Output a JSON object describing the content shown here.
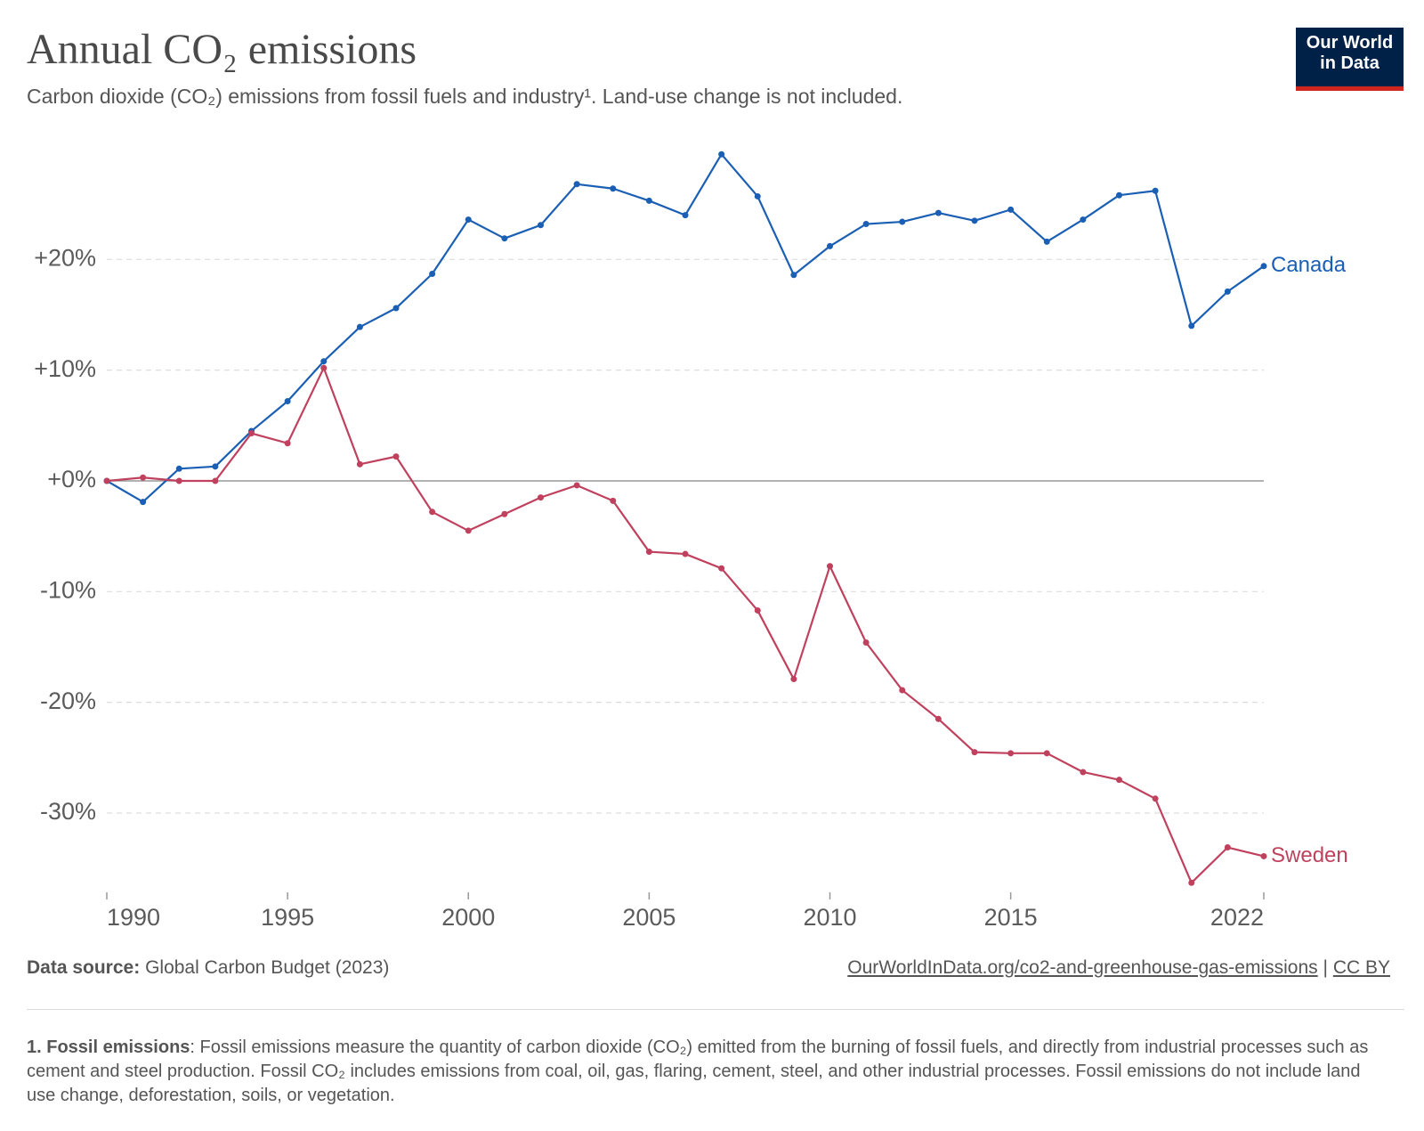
{
  "chart_data": {
    "type": "line",
    "title": "Annual CO₂ emissions",
    "subtitle": "Carbon dioxide (CO₂) emissions from fossil fuels and industry¹. Land-use change is not included.",
    "logo": [
      "Our World",
      "in Data"
    ],
    "x": [
      1990,
      1991,
      1992,
      1993,
      1994,
      1995,
      1996,
      1997,
      1998,
      1999,
      2000,
      2001,
      2002,
      2003,
      2004,
      2005,
      2006,
      2007,
      2008,
      2009,
      2010,
      2011,
      2012,
      2013,
      2014,
      2015,
      2016,
      2017,
      2018,
      2019,
      2020,
      2021,
      2022
    ],
    "series": [
      {
        "name": "Canada",
        "color": "#1a5fb4",
        "values": [
          0,
          -1.9,
          1.1,
          1.3,
          4.5,
          7.2,
          10.8,
          13.9,
          15.6,
          18.7,
          23.6,
          21.9,
          23.1,
          26.8,
          26.4,
          25.3,
          24.0,
          29.5,
          25.7,
          18.6,
          21.2,
          23.2,
          23.4,
          24.2,
          23.5,
          24.5,
          21.6,
          23.6,
          25.8,
          26.2,
          14.0,
          17.1,
          19.4
        ]
      },
      {
        "name": "Sweden",
        "color": "#c0415d",
        "values": [
          0,
          0.3,
          0,
          0,
          4.3,
          3.4,
          10.2,
          1.5,
          2.2,
          -2.8,
          -4.5,
          -3.0,
          -1.5,
          -0.4,
          -1.8,
          -6.4,
          -6.6,
          -7.9,
          -11.7,
          -17.9,
          -7.7,
          -14.6,
          -18.9,
          -21.5,
          -24.5,
          -24.6,
          -24.6,
          -26.3,
          -27.0,
          -28.7,
          -36.3,
          -33.1,
          -33.9
        ]
      }
    ],
    "xlim": [
      1990,
      2022
    ],
    "xticks": [
      1990,
      1995,
      2000,
      2005,
      2010,
      2015,
      2022
    ],
    "ylim": [
      -37,
      30
    ],
    "yticks": [
      {
        "value": -30,
        "label": "-30%"
      },
      {
        "value": -20,
        "label": "-20%"
      },
      {
        "value": -10,
        "label": "-10%"
      },
      {
        "value": 0,
        "label": "+0%"
      },
      {
        "value": 10,
        "label": "+10%"
      },
      {
        "value": 20,
        "label": "+20%"
      }
    ],
    "grid": true,
    "source_label": "Data source:",
    "source": "Global Carbon Budget (2023)",
    "url": "OurWorldInData.org/co2-and-greenhouse-gas-emissions",
    "separator": "|",
    "license": "CC BY",
    "footnote_title": "1. Fossil emissions",
    "footnote": ": Fossil emissions measure the quantity of carbon dioxide (CO₂) emitted from the burning of fossil fuels, and directly from industrial processes such as cement and steel production. Fossil CO₂ includes emissions from coal, oil, gas, flaring, cement, steel, and other industrial processes. Fossil emissions do not include land use change, deforestation, soils, or vegetation."
  }
}
